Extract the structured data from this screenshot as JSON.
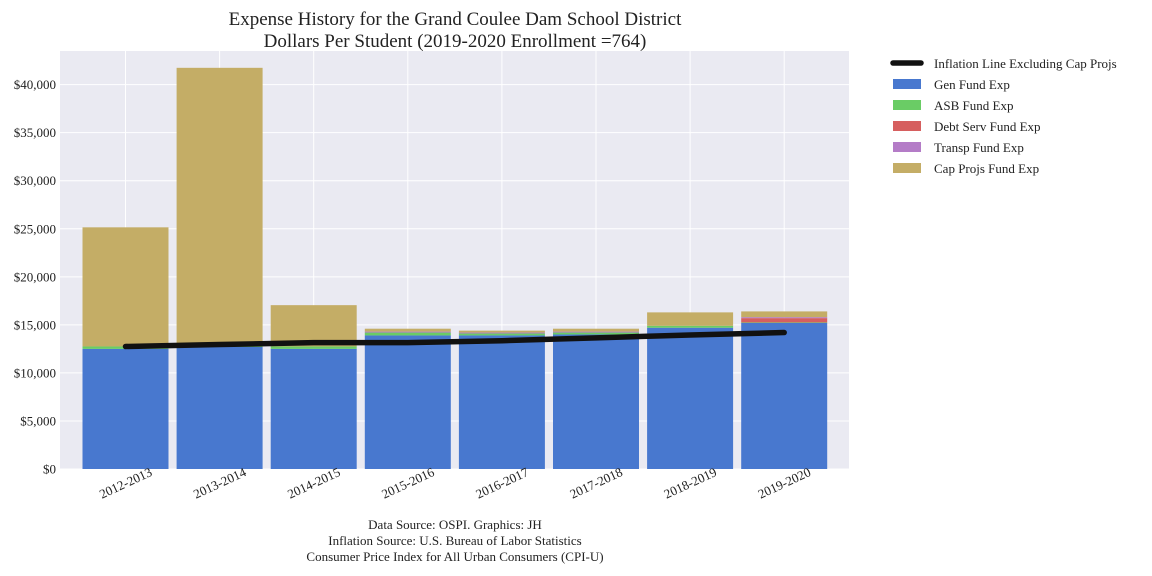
{
  "chart_data": {
    "type": "bar",
    "stacked": true,
    "title": "Expense History for the Grand Coulee Dam School District",
    "subtitle": "Dollars Per Student (2019-2020 Enrollment =764)",
    "xlabel": "",
    "ylabel": "",
    "ylim": [
      0,
      43500
    ],
    "yticks": [
      0,
      5000,
      10000,
      15000,
      20000,
      25000,
      30000,
      35000,
      40000
    ],
    "ytick_labels": [
      "$0",
      "$5,000",
      "$10,000",
      "$15,000",
      "$20,000",
      "$25,000",
      "$30,000",
      "$35,000",
      "$40,000"
    ],
    "grid": true,
    "legend_position": "outside-top-right",
    "categories": [
      "2012-2013",
      "2013-2014",
      "2014-2015",
      "2015-2016",
      "2016-2017",
      "2017-2018",
      "2018-2019",
      "2019-2020"
    ],
    "series": [
      {
        "name": "Gen Fund Exp",
        "color": "#4878cf",
        "values": [
          12500,
          12700,
          12500,
          13900,
          13900,
          14000,
          14700,
          15200
        ]
      },
      {
        "name": "ASB Fund Exp",
        "color": "#6acc65",
        "values": [
          250,
          150,
          250,
          300,
          200,
          200,
          200,
          50
        ]
      },
      {
        "name": "Debt Serv Fund Exp",
        "color": "#d65f5f",
        "values": [
          0,
          0,
          0,
          0,
          0,
          0,
          0,
          450
        ]
      },
      {
        "name": "Transp Fund Exp",
        "color": "#b47cc7",
        "values": [
          0,
          0,
          0,
          100,
          100,
          100,
          0,
          100
        ]
      },
      {
        "name": "Cap Projs Fund Exp",
        "color": "#c4ad66",
        "values": [
          12400,
          28900,
          4300,
          300,
          200,
          300,
          1400,
          600
        ]
      }
    ],
    "line": {
      "name": "Inflation Line Excluding Cap Projs",
      "color": "#111111",
      "values": [
        12750,
        12950,
        13150,
        13150,
        13350,
        13650,
        13950,
        14200
      ]
    },
    "source_notes": [
      "Data Source: OSPI. Graphics: JH",
      "Inflation Source: U.S. Bureau of Labor Statistics",
      "Consumer Price Index for All Urban Consumers (CPI-U)"
    ],
    "colors": {
      "plot_background": "#eaeaf2",
      "grid": "#ffffff"
    }
  }
}
